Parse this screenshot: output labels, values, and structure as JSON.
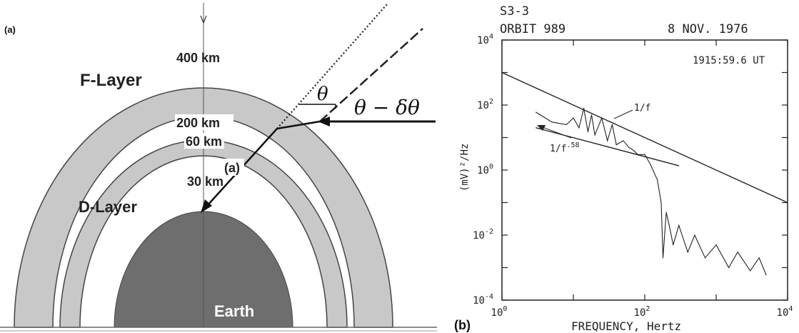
{
  "left_panel": {
    "panel_label": "(a)",
    "layer_labels": {
      "f_layer": "F-Layer",
      "d_layer": "D-Layer"
    },
    "altitude_labels": [
      "400 km",
      "200 km",
      "60 km",
      "30 km"
    ],
    "earth_label": "Earth",
    "inline_label": "(a)",
    "angle_labels": {
      "theta": "θ",
      "theta_minus_delta": "θ − δθ"
    },
    "colors": {
      "layer_fill": "#c8c8c8",
      "earth_fill": "#6e6e6e",
      "background": "#ffffff"
    }
  },
  "right_panel": {
    "header": {
      "satellite": "S3-3",
      "orbit": "ORBIT 989",
      "date": "8 NOV. 1976"
    },
    "time_label": "1915:59.6 UT",
    "panel_label": "(b)",
    "annotations": {
      "f_inverse": "1/f",
      "f_power": "1/f",
      "f_power_exp": ".58"
    },
    "chart_data": {
      "type": "line",
      "title": "",
      "xlabel": "FREQUENCY, Hertz",
      "ylabel": "(mV)²/Hz",
      "xscale": "log",
      "yscale": "log",
      "xlim": [
        1,
        10000
      ],
      "ylim": [
        0.0001,
        10000
      ],
      "x_ticks": [
        {
          "base": "10",
          "exp": "0"
        },
        {
          "base": "10",
          "exp": "2"
        },
        {
          "base": "10",
          "exp": "4"
        }
      ],
      "y_ticks": [
        {
          "base": "10",
          "exp": "4"
        },
        {
          "base": "10",
          "exp": "2"
        },
        {
          "base": "10",
          "exp": "0"
        },
        {
          "base": "10",
          "exp": "-2"
        },
        {
          "base": "10",
          "exp": "-4"
        }
      ],
      "series": [
        {
          "label_key": "f_inverse",
          "x": [
            1,
            10000
          ],
          "y": [
            1000,
            0.1
          ]
        },
        {
          "label_key": "f_power",
          "x": [
            3,
            300
          ],
          "y": [
            20,
            1.36
          ]
        },
        {
          "label_key": "measured",
          "x": [
            3,
            5,
            8,
            10,
            12,
            14,
            16,
            18,
            20,
            25,
            30,
            35,
            40,
            50,
            60,
            70,
            80,
            100,
            120,
            150,
            170,
            180,
            200,
            220,
            250,
            300,
            400,
            500,
            700,
            1000,
            1500,
            2000,
            3000,
            4000,
            5000
          ],
          "y": [
            60,
            30,
            25,
            40,
            20,
            80,
            15,
            50,
            12,
            40,
            8,
            25,
            6,
            8,
            5,
            4,
            3,
            3,
            1.5,
            0.5,
            0.1,
            0.002,
            0.05,
            0.02,
            0.005,
            0.02,
            0.003,
            0.01,
            0.002,
            0.005,
            0.001,
            0.003,
            0.0008,
            0.002,
            0.0006
          ]
        }
      ]
    }
  }
}
